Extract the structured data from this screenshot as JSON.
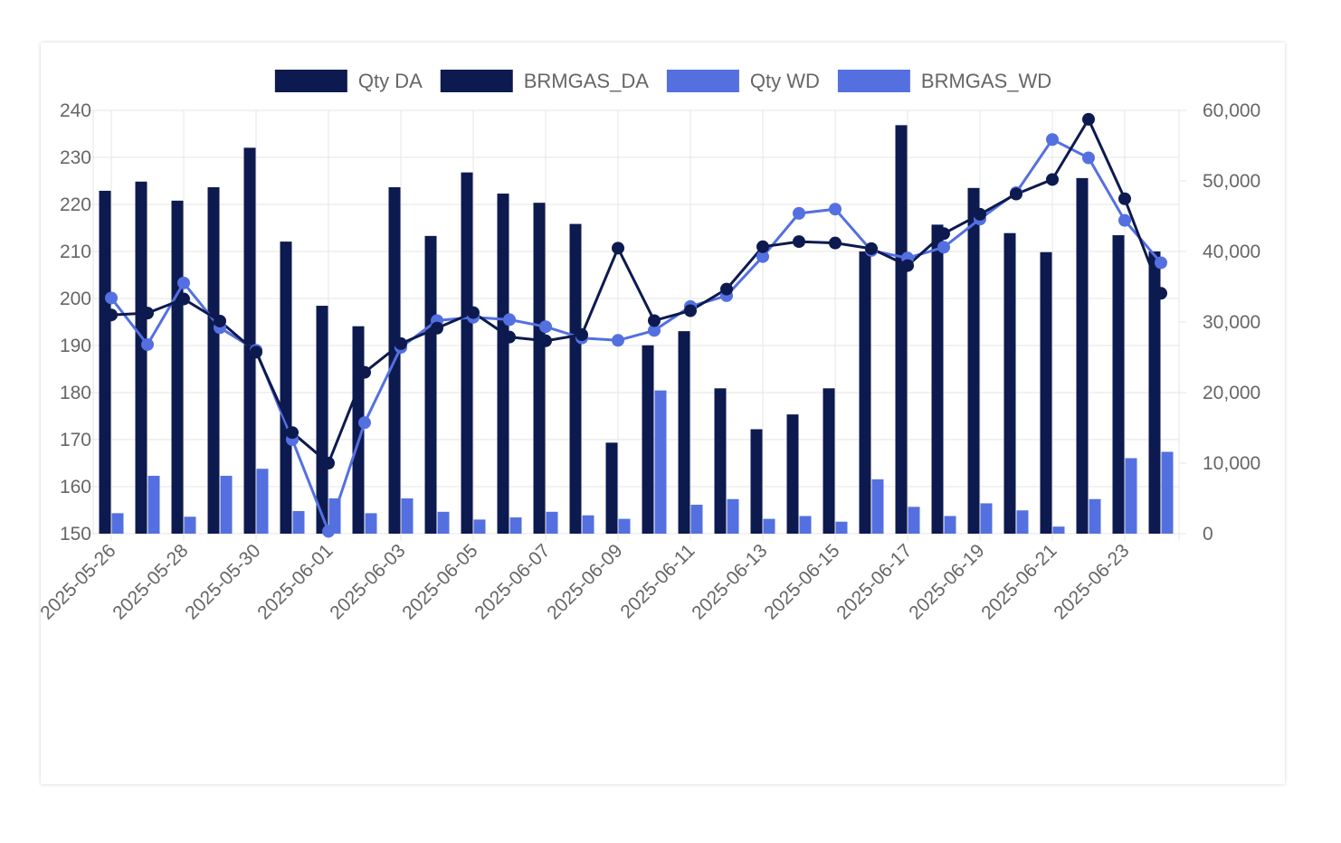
{
  "chart_data": {
    "type": "bar",
    "colors": {
      "da": "#0d1a4f",
      "wd": "#5470e0",
      "grid": "#e5e5e5"
    },
    "legend": {
      "placement": "top-center",
      "items": [
        {
          "label": "Qty DA",
          "series": "BRMGAS_DA_qty"
        },
        {
          "label": "BRMGAS_DA",
          "series": "BRMGAS_DA_price"
        },
        {
          "label": "Qty WD",
          "series": "BRMGAS_WD_qty"
        },
        {
          "label": "BRMGAS_WD",
          "series": "BRMGAS_WD_price"
        }
      ]
    },
    "x": [
      "2025-05-26",
      "2025-05-27",
      "2025-05-28",
      "2025-05-29",
      "2025-05-30",
      "2025-05-31",
      "2025-06-01",
      "2025-06-02",
      "2025-06-03",
      "2025-06-04",
      "2025-06-05",
      "2025-06-06",
      "2025-06-07",
      "2025-06-08",
      "2025-06-09",
      "2025-06-10",
      "2025-06-11",
      "2025-06-12",
      "2025-06-13",
      "2025-06-14",
      "2025-06-15",
      "2025-06-16",
      "2025-06-17",
      "2025-06-18",
      "2025-06-19",
      "2025-06-20",
      "2025-06-21",
      "2025-06-22",
      "2025-06-23",
      "2025-06-24"
    ],
    "x_tick_labels": [
      "2025-05-26",
      "2025-05-28",
      "2025-05-30",
      "2025-06-01",
      "2025-06-03",
      "2025-06-05",
      "2025-06-07",
      "2025-06-09",
      "2025-06-11",
      "2025-06-13",
      "2025-06-15",
      "2025-06-17",
      "2025-06-19",
      "2025-06-21",
      "2025-06-23"
    ],
    "y_left": {
      "range": [
        150,
        240
      ],
      "ticks": [
        "240",
        "230",
        "220",
        "210",
        "200",
        "190",
        "180",
        "170",
        "160",
        "150"
      ]
    },
    "y_right": {
      "range": [
        0,
        60000
      ],
      "ticks": [
        "60,000",
        "50,000",
        "40,000",
        "30,000",
        "20,000",
        "10,000",
        "0"
      ]
    },
    "grid": true,
    "series": [
      {
        "name": "Qty DA",
        "type": "bar",
        "axis": "right",
        "color": "#0d1a4f",
        "values": [
          48600,
          49900,
          47200,
          49100,
          54700,
          41400,
          32300,
          29400,
          49100,
          42200,
          51200,
          48200,
          46900,
          43900,
          12900,
          26700,
          28700,
          20600,
          14800,
          16900,
          20600,
          40000,
          57900,
          43800,
          49000,
          42600,
          39900,
          50400,
          42300,
          40000
        ]
      },
      {
        "name": "BRMGAS_DA",
        "type": "line",
        "axis": "left",
        "color": "#0d1a4f",
        "values": [
          196.5,
          196.9,
          199.9,
          195.2,
          188.6,
          171.5,
          165.0,
          184.3,
          190.4,
          193.7,
          197.0,
          191.8,
          191.0,
          192.3,
          210.7,
          195.3,
          197.4,
          202.0,
          211.0,
          212.1,
          211.8,
          210.6,
          207.0,
          213.8,
          217.9,
          222.2,
          225.3,
          238.1,
          221.2,
          201.1
        ]
      },
      {
        "name": "Qty WD",
        "type": "bar",
        "axis": "right",
        "color": "#5470e0",
        "values": [
          2900,
          8200,
          2400,
          8200,
          9200,
          3200,
          5000,
          2900,
          5000,
          3100,
          2000,
          2300,
          3100,
          2600,
          2100,
          20300,
          4100,
          4900,
          2100,
          2500,
          1700,
          7700,
          3800,
          2500,
          4300,
          3300,
          1000,
          4900,
          10700,
          11600
        ]
      },
      {
        "name": "BRMGAS_WD",
        "type": "line",
        "axis": "left",
        "color": "#5470e0",
        "values": [
          200.1,
          190.2,
          203.3,
          193.8,
          189.0,
          170.0,
          150.5,
          173.6,
          189.6,
          195.3,
          196.0,
          195.5,
          194.0,
          191.6,
          191.1,
          193.2,
          198.3,
          200.6,
          208.9,
          218.1,
          219.0,
          210.2,
          208.6,
          210.9,
          216.9,
          222.5,
          233.8,
          229.9,
          216.6,
          207.6
        ]
      }
    ]
  }
}
